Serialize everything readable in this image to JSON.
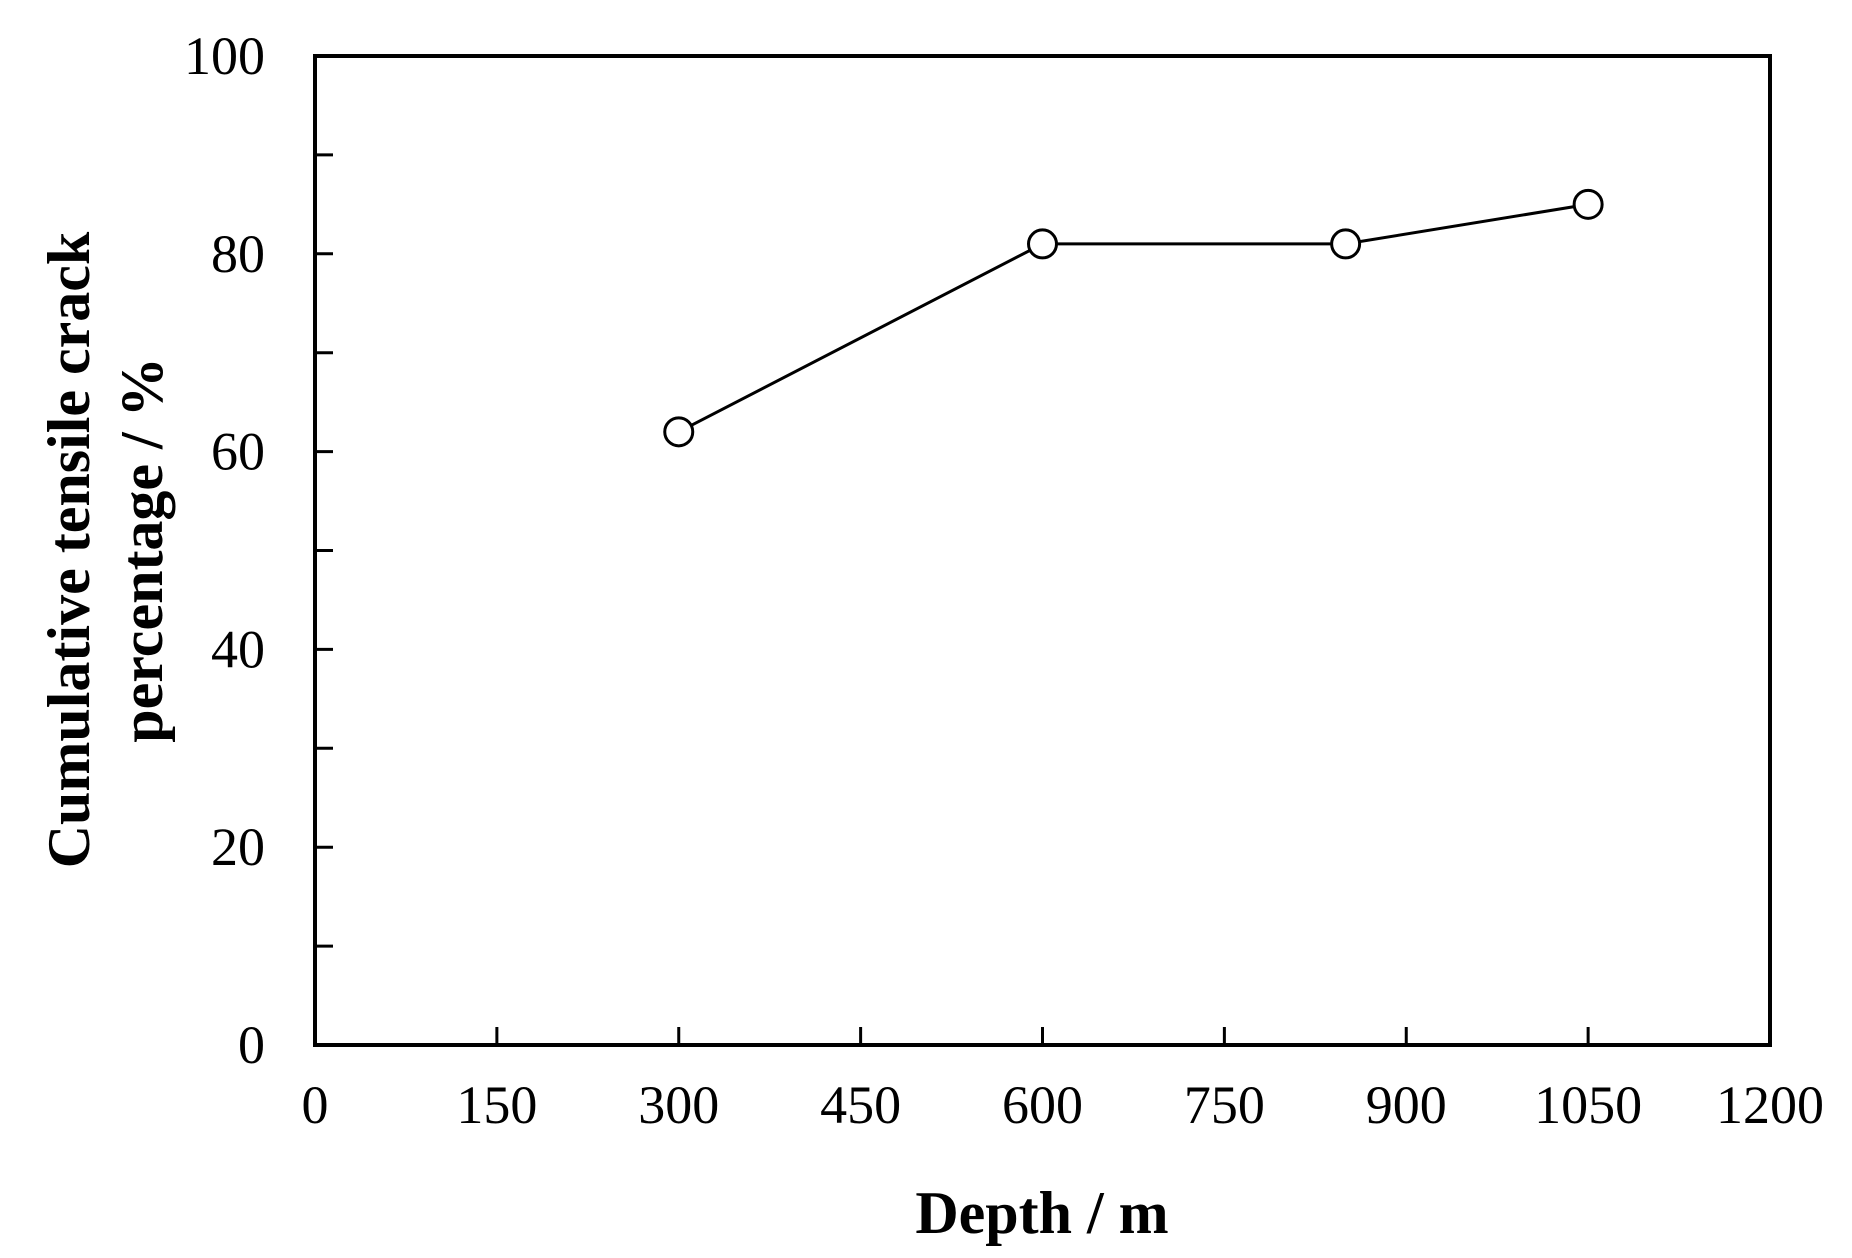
{
  "chart_data": {
    "type": "line",
    "title": "",
    "xlabel": "Depth / m",
    "ylabel_lines": [
      "Cumulative tensile crack",
      "percentage / %"
    ],
    "xlim": [
      0,
      1200
    ],
    "ylim": [
      0,
      100
    ],
    "x_ticks": [
      0,
      150,
      300,
      450,
      600,
      750,
      900,
      1050,
      1200
    ],
    "y_ticks": [
      0,
      20,
      40,
      60,
      80,
      100
    ],
    "y_minor_ticks": [
      10,
      30,
      50,
      70,
      90
    ],
    "grid": false,
    "legend": "none",
    "series": [
      {
        "marker": "open-circle",
        "color": "#000000",
        "points": [
          {
            "x": 300,
            "y": 62
          },
          {
            "x": 600,
            "y": 81
          },
          {
            "x": 850,
            "y": 81
          },
          {
            "x": 1050,
            "y": 85
          }
        ]
      }
    ]
  }
}
